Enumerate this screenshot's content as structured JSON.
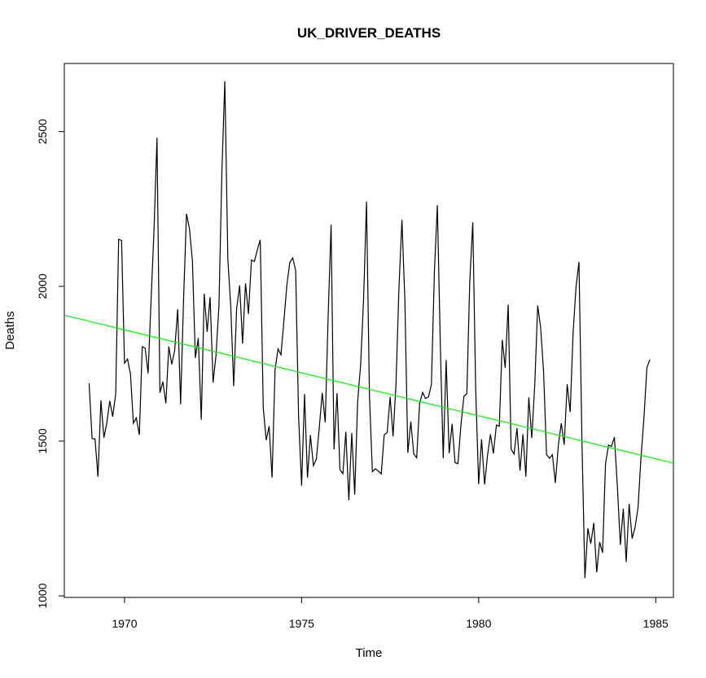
{
  "chart_data": {
    "type": "line",
    "title": "UK_DRIVER_DEATHS",
    "xlabel": "Time",
    "ylabel": "Deaths",
    "xlim": [
      1968.3,
      1985.5
    ],
    "ylim": [
      995,
      2720
    ],
    "x_ticks": [
      1970,
      1975,
      1980,
      1985
    ],
    "y_ticks": [
      1000,
      1500,
      2000,
      2500
    ],
    "grid": false,
    "legend": "none",
    "x_start": 1969,
    "frequency": 12,
    "series": [
      {
        "color": "#000000",
        "values": [
          1687,
          1508,
          1507,
          1385,
          1632,
          1511,
          1559,
          1630,
          1579,
          1653,
          2152,
          2148,
          1752,
          1765,
          1717,
          1558,
          1575,
          1520,
          1805,
          1800,
          1719,
          1954,
          2186,
          2480,
          1656,
          1692,
          1622,
          1806,
          1748,
          1793,
          1926,
          1619,
          1955,
          2234,
          2186,
          2082,
          1769,
          1833,
          1569,
          1976,
          1853,
          1965,
          1689,
          1779,
          1938,
          2371,
          2663,
          2088,
          1934,
          1678,
          1928,
          2003,
          1815,
          2010,
          1911,
          2085,
          2080,
          2118,
          2150,
          1608,
          1503,
          1548,
          1382,
          1731,
          1798,
          1779,
          1887,
          2004,
          2077,
          2092,
          2051,
          1577,
          1356,
          1652,
          1382,
          1519,
          1421,
          1442,
          1543,
          1656,
          1561,
          1905,
          2199,
          1473,
          1655,
          1407,
          1395,
          1530,
          1309,
          1526,
          1327,
          1627,
          1748,
          1958,
          2274,
          1648,
          1401,
          1411,
          1403,
          1394,
          1520,
          1528,
          1643,
          1515,
          1685,
          2000,
          2215,
          1956,
          1462,
          1563,
          1459,
          1446,
          1622,
          1657,
          1638,
          1643,
          1683,
          2050,
          2262,
          1813,
          1445,
          1762,
          1461,
          1556,
          1431,
          1427,
          1554,
          1645,
          1653,
          2016,
          2207,
          1665,
          1361,
          1506,
          1360,
          1453,
          1522,
          1460,
          1552,
          1548,
          1827,
          1737,
          1941,
          1474,
          1458,
          1542,
          1404,
          1522,
          1385,
          1641,
          1510,
          1681,
          1938,
          1868,
          1726,
          1456,
          1445,
          1456,
          1365,
          1487,
          1558,
          1488,
          1684,
          1594,
          1850,
          1998,
          2079,
          1494,
          1057,
          1218,
          1168,
          1236,
          1076,
          1174,
          1139,
          1427,
          1487,
          1483,
          1513,
          1357,
          1165,
          1282,
          1110,
          1297,
          1185,
          1222,
          1284,
          1444,
          1575,
          1737,
          1763
        ]
      }
    ],
    "trend_line": {
      "color": "#00ff00",
      "intercept": 1906.7,
      "slope": -27.77,
      "x_ref": 1968.3
    }
  }
}
